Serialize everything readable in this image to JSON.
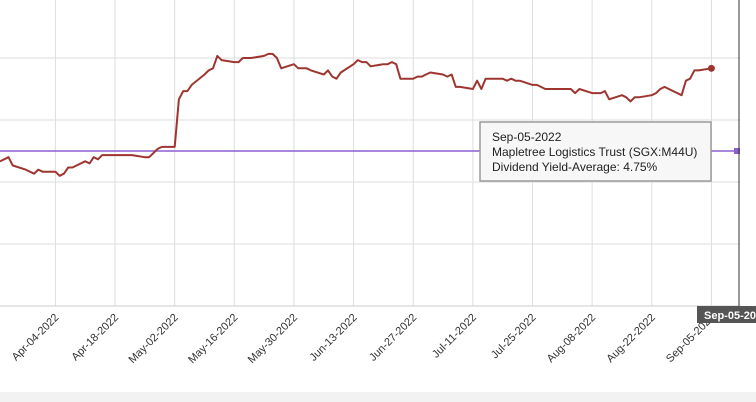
{
  "chart_data": {
    "type": "line",
    "title": "",
    "xlabel": "",
    "ylabel": "",
    "x_tick_labels": [
      "Apr-04-2022",
      "Apr-18-2022",
      "May-02-2022",
      "May-16-2022",
      "May-30-2022",
      "Jun-13-2022",
      "Jun-27-2022",
      "Jul-11-2022",
      "Jul-25-2022",
      "Aug-08-2022",
      "Aug-22-2022",
      "Sep-05-2022"
    ],
    "x_range": [
      "2022-03-22",
      "2022-09-06"
    ],
    "ylim": [
      4.0,
      5.2
    ],
    "grid": true,
    "series": [
      {
        "name": "Mapletree Logistics Trust (SGX:M44U)",
        "color": "#9e3630",
        "points": [
          [
            "2022-03-22",
            4.7
          ],
          [
            "2022-03-24",
            4.72
          ],
          [
            "2022-03-25",
            4.68
          ],
          [
            "2022-03-28",
            4.66
          ],
          [
            "2022-03-30",
            4.64
          ],
          [
            "2022-03-31",
            4.66
          ],
          [
            "2022-04-01",
            4.65
          ],
          [
            "2022-04-04",
            4.65
          ],
          [
            "2022-04-05",
            4.63
          ],
          [
            "2022-04-06",
            4.64
          ],
          [
            "2022-04-07",
            4.67
          ],
          [
            "2022-04-08",
            4.67
          ],
          [
            "2022-04-11",
            4.7
          ],
          [
            "2022-04-12",
            4.69
          ],
          [
            "2022-04-13",
            4.72
          ],
          [
            "2022-04-14",
            4.71
          ],
          [
            "2022-04-15",
            4.73
          ],
          [
            "2022-04-18",
            4.73
          ],
          [
            "2022-04-19",
            4.73
          ],
          [
            "2022-04-20",
            4.73
          ],
          [
            "2022-04-21",
            4.73
          ],
          [
            "2022-04-22",
            4.73
          ],
          [
            "2022-04-25",
            4.72
          ],
          [
            "2022-04-26",
            4.72
          ],
          [
            "2022-04-27",
            4.74
          ],
          [
            "2022-04-28",
            4.76
          ],
          [
            "2022-04-29",
            4.77
          ],
          [
            "2022-05-02",
            4.77
          ],
          [
            "2022-05-03",
            5.0
          ],
          [
            "2022-05-04",
            5.04
          ],
          [
            "2022-05-05",
            5.04
          ],
          [
            "2022-05-06",
            5.07
          ],
          [
            "2022-05-09",
            5.12
          ],
          [
            "2022-05-10",
            5.14
          ],
          [
            "2022-05-11",
            5.15
          ],
          [
            "2022-05-12",
            5.21
          ],
          [
            "2022-05-13",
            5.19
          ],
          [
            "2022-05-16",
            5.18
          ],
          [
            "2022-05-17",
            5.18
          ],
          [
            "2022-05-18",
            5.2
          ],
          [
            "2022-05-19",
            5.2
          ],
          [
            "2022-05-20",
            5.2
          ],
          [
            "2022-05-23",
            5.21
          ],
          [
            "2022-05-24",
            5.22
          ],
          [
            "2022-05-25",
            5.22
          ],
          [
            "2022-05-26",
            5.2
          ],
          [
            "2022-05-27",
            5.15
          ],
          [
            "2022-05-30",
            5.17
          ],
          [
            "2022-05-31",
            5.15
          ],
          [
            "2022-06-01",
            5.15
          ],
          [
            "2022-06-02",
            5.15
          ],
          [
            "2022-06-03",
            5.14
          ],
          [
            "2022-06-06",
            5.12
          ],
          [
            "2022-06-07",
            5.14
          ],
          [
            "2022-06-08",
            5.11
          ],
          [
            "2022-06-09",
            5.1
          ],
          [
            "2022-06-10",
            5.13
          ],
          [
            "2022-06-13",
            5.17
          ],
          [
            "2022-06-14",
            5.19
          ],
          [
            "2022-06-15",
            5.18
          ],
          [
            "2022-06-16",
            5.18
          ],
          [
            "2022-06-17",
            5.16
          ],
          [
            "2022-06-20",
            5.17
          ],
          [
            "2022-06-21",
            5.17
          ],
          [
            "2022-06-22",
            5.18
          ],
          [
            "2022-06-23",
            5.17
          ],
          [
            "2022-06-24",
            5.1
          ],
          [
            "2022-06-27",
            5.1
          ],
          [
            "2022-06-28",
            5.11
          ],
          [
            "2022-06-29",
            5.11
          ],
          [
            "2022-06-30",
            5.12
          ],
          [
            "2022-07-01",
            5.13
          ],
          [
            "2022-07-04",
            5.12
          ],
          [
            "2022-07-05",
            5.11
          ],
          [
            "2022-07-06",
            5.12
          ],
          [
            "2022-07-07",
            5.06
          ],
          [
            "2022-07-08",
            5.06
          ],
          [
            "2022-07-11",
            5.05
          ],
          [
            "2022-07-12",
            5.09
          ],
          [
            "2022-07-13",
            5.05
          ],
          [
            "2022-07-14",
            5.1
          ],
          [
            "2022-07-15",
            5.1
          ],
          [
            "2022-07-18",
            5.1
          ],
          [
            "2022-07-19",
            5.09
          ],
          [
            "2022-07-20",
            5.1
          ],
          [
            "2022-07-21",
            5.09
          ],
          [
            "2022-07-22",
            5.09
          ],
          [
            "2022-07-25",
            5.07
          ],
          [
            "2022-07-26",
            5.07
          ],
          [
            "2022-07-27",
            5.06
          ],
          [
            "2022-07-28",
            5.05
          ],
          [
            "2022-07-29",
            5.05
          ],
          [
            "2022-08-01",
            5.05
          ],
          [
            "2022-08-02",
            5.05
          ],
          [
            "2022-08-03",
            5.05
          ],
          [
            "2022-08-04",
            5.03
          ],
          [
            "2022-08-05",
            5.05
          ],
          [
            "2022-08-08",
            5.03
          ],
          [
            "2022-08-09",
            5.03
          ],
          [
            "2022-08-10",
            5.03
          ],
          [
            "2022-08-11",
            5.04
          ],
          [
            "2022-08-12",
            5.0
          ],
          [
            "2022-08-15",
            5.02
          ],
          [
            "2022-08-16",
            5.01
          ],
          [
            "2022-08-17",
            4.99
          ],
          [
            "2022-08-18",
            5.01
          ],
          [
            "2022-08-19",
            5.01
          ],
          [
            "2022-08-22",
            5.02
          ],
          [
            "2022-08-23",
            5.03
          ],
          [
            "2022-08-24",
            5.05
          ],
          [
            "2022-08-25",
            5.06
          ],
          [
            "2022-08-26",
            5.05
          ],
          [
            "2022-08-29",
            5.02
          ],
          [
            "2022-08-30",
            5.09
          ],
          [
            "2022-08-31",
            5.1
          ],
          [
            "2022-09-01",
            5.14
          ],
          [
            "2022-09-02",
            5.14
          ],
          [
            "2022-09-05",
            5.15
          ]
        ]
      },
      {
        "name": "Dividend Yield-Average",
        "color": "#8a5fcf",
        "constant": 4.75
      }
    ],
    "tooltip": {
      "date": "Sep-05-2022",
      "company": "Mapletree Logistics Trust (SGX:M44U)",
      "metric": "Dividend Yield-Average: 4.75%"
    },
    "cursor_label": "Sep-05-20"
  }
}
